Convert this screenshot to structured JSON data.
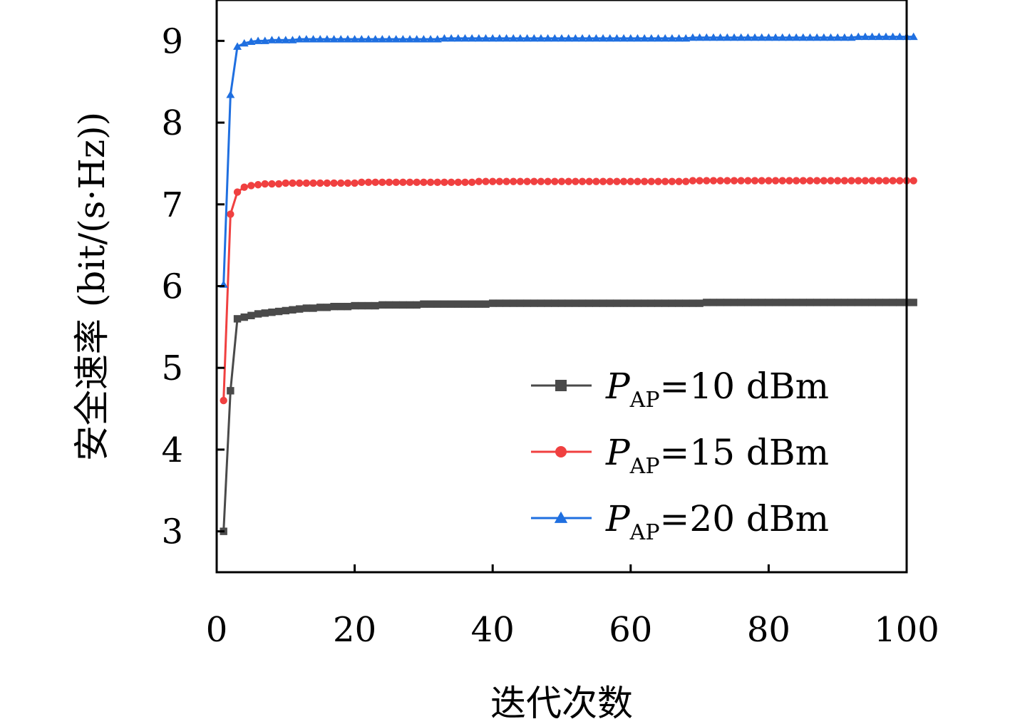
{
  "chart_data": {
    "type": "line",
    "title": "",
    "xlabel": "迭代次数",
    "ylabel": "安全速率 (bit/(s·Hz))",
    "xlim": [
      0,
      100
    ],
    "ylim": [
      2.5,
      9.5
    ],
    "x_ticks": [
      "0",
      "20",
      "40",
      "60",
      "80",
      "100"
    ],
    "y_ticks": [
      "3",
      "4",
      "5",
      "6",
      "7",
      "8",
      "9"
    ],
    "grid": false,
    "legend_position": "lower-right",
    "x": [
      1,
      2,
      3,
      4,
      5,
      6,
      7,
      8,
      9,
      10,
      11,
      12,
      13,
      14,
      15,
      16,
      17,
      18,
      19,
      20,
      21,
      22,
      23,
      24,
      25,
      26,
      27,
      28,
      29,
      30,
      31,
      32,
      33,
      34,
      35,
      36,
      37,
      38,
      39,
      40,
      41,
      42,
      43,
      44,
      45,
      46,
      47,
      48,
      49,
      50,
      51,
      52,
      53,
      54,
      55,
      56,
      57,
      58,
      59,
      60,
      61,
      62,
      63,
      64,
      65,
      66,
      67,
      68,
      69,
      70,
      71,
      72,
      73,
      74,
      75,
      76,
      77,
      78,
      79,
      80,
      81,
      82,
      83,
      84,
      85,
      86,
      87,
      88,
      89,
      90,
      91,
      92,
      93,
      94,
      95,
      96,
      97,
      98,
      99,
      100,
      101
    ],
    "series": [
      {
        "name": "P_AP=10 dBm",
        "label_main": "P",
        "label_sub": "AP",
        "label_rest": "=10 dBm",
        "color": "#4a4a4a",
        "marker": "square",
        "values": [
          3.0,
          4.72,
          5.6,
          5.62,
          5.64,
          5.66,
          5.67,
          5.68,
          5.69,
          5.7,
          5.71,
          5.72,
          5.73,
          5.73,
          5.74,
          5.74,
          5.75,
          5.75,
          5.75,
          5.76,
          5.76,
          5.76,
          5.76,
          5.77,
          5.77,
          5.77,
          5.77,
          5.77,
          5.77,
          5.78,
          5.78,
          5.78,
          5.78,
          5.78,
          5.78,
          5.78,
          5.78,
          5.78,
          5.78,
          5.79,
          5.79,
          5.79,
          5.79,
          5.79,
          5.79,
          5.79,
          5.79,
          5.79,
          5.79,
          5.79,
          5.79,
          5.79,
          5.79,
          5.79,
          5.79,
          5.79,
          5.79,
          5.79,
          5.79,
          5.79,
          5.79,
          5.79,
          5.79,
          5.79,
          5.79,
          5.79,
          5.79,
          5.79,
          5.79,
          5.79,
          5.8,
          5.8,
          5.8,
          5.8,
          5.8,
          5.8,
          5.8,
          5.8,
          5.8,
          5.8,
          5.8,
          5.8,
          5.8,
          5.8,
          5.8,
          5.8,
          5.8,
          5.8,
          5.8,
          5.8,
          5.8,
          5.8,
          5.8,
          5.8,
          5.8,
          5.8,
          5.8,
          5.8,
          5.8,
          5.8,
          5.8
        ]
      },
      {
        "name": "P_AP=15 dBm",
        "label_main": "P",
        "label_sub": "AP",
        "label_rest": "=15 dBm",
        "color": "#f04040",
        "marker": "circle",
        "values": [
          4.6,
          6.88,
          7.15,
          7.21,
          7.23,
          7.24,
          7.25,
          7.25,
          7.25,
          7.26,
          7.26,
          7.26,
          7.26,
          7.26,
          7.26,
          7.26,
          7.26,
          7.26,
          7.26,
          7.26,
          7.27,
          7.27,
          7.27,
          7.27,
          7.27,
          7.27,
          7.27,
          7.27,
          7.27,
          7.27,
          7.27,
          7.27,
          7.27,
          7.27,
          7.27,
          7.27,
          7.27,
          7.28,
          7.28,
          7.28,
          7.28,
          7.28,
          7.28,
          7.28,
          7.28,
          7.28,
          7.28,
          7.28,
          7.28,
          7.28,
          7.28,
          7.28,
          7.28,
          7.28,
          7.28,
          7.28,
          7.28,
          7.28,
          7.28,
          7.28,
          7.28,
          7.28,
          7.28,
          7.28,
          7.28,
          7.28,
          7.28,
          7.28,
          7.29,
          7.29,
          7.29,
          7.29,
          7.29,
          7.29,
          7.29,
          7.29,
          7.29,
          7.29,
          7.29,
          7.29,
          7.29,
          7.29,
          7.29,
          7.29,
          7.29,
          7.29,
          7.29,
          7.29,
          7.29,
          7.29,
          7.29,
          7.29,
          7.29,
          7.29,
          7.29,
          7.29,
          7.29,
          7.29,
          7.29,
          7.29,
          7.29
        ]
      },
      {
        "name": "P_AP=20 dBm",
        "label_main": "P",
        "label_sub": "AP",
        "label_rest": "=20 dBm",
        "color": "#1f6fe0",
        "marker": "triangle",
        "values": [
          6.02,
          8.34,
          8.93,
          8.97,
          8.99,
          9.0,
          9.0,
          9.01,
          9.01,
          9.01,
          9.01,
          9.02,
          9.02,
          9.02,
          9.02,
          9.02,
          9.02,
          9.02,
          9.02,
          9.02,
          9.02,
          9.02,
          9.02,
          9.02,
          9.02,
          9.02,
          9.02,
          9.02,
          9.02,
          9.02,
          9.02,
          9.02,
          9.03,
          9.03,
          9.03,
          9.03,
          9.03,
          9.03,
          9.03,
          9.03,
          9.03,
          9.03,
          9.03,
          9.03,
          9.03,
          9.03,
          9.03,
          9.03,
          9.03,
          9.03,
          9.03,
          9.03,
          9.03,
          9.03,
          9.03,
          9.03,
          9.03,
          9.03,
          9.03,
          9.03,
          9.03,
          9.03,
          9.03,
          9.03,
          9.03,
          9.03,
          9.03,
          9.03,
          9.04,
          9.04,
          9.04,
          9.04,
          9.04,
          9.04,
          9.04,
          9.04,
          9.04,
          9.04,
          9.04,
          9.04,
          9.04,
          9.04,
          9.04,
          9.04,
          9.04,
          9.04,
          9.04,
          9.04,
          9.04,
          9.04,
          9.04,
          9.04,
          9.05,
          9.05,
          9.05,
          9.05,
          9.05,
          9.05,
          9.05,
          9.05,
          9.05
        ]
      }
    ]
  }
}
